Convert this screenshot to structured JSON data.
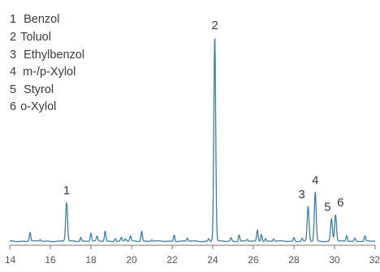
{
  "chart_data": {
    "type": "line",
    "title": "",
    "xlabel": "",
    "ylabel": "",
    "xlim": [
      14,
      32
    ],
    "ylim": [
      0,
      100
    ],
    "x_ticks": [
      14,
      16,
      18,
      20,
      22,
      24,
      26,
      28,
      30,
      32
    ],
    "grid": false,
    "legend_position": "top-left",
    "colors": {
      "trace": "#3d7fa6",
      "axis": "#777777",
      "text": "#3a3a3a"
    },
    "legend_entries": [
      {
        "number": "1",
        "name": "Benzol"
      },
      {
        "number": "2",
        "name": "Toluol"
      },
      {
        "number": "3",
        "name": "Ethylbenzol"
      },
      {
        "number": "4",
        "name": "m-/p-Xylol"
      },
      {
        "number": "5",
        "name": "Styrol"
      },
      {
        "number": "6",
        "name": "o-Xylol"
      }
    ],
    "peaks": [
      {
        "label": "1",
        "x": 16.8,
        "y": 19
      },
      {
        "label": "2",
        "x": 24.1,
        "y": 100
      },
      {
        "label": "3",
        "x": 28.7,
        "y": 17
      },
      {
        "label": "4",
        "x": 29.05,
        "y": 24
      },
      {
        "label": "5",
        "x": 29.85,
        "y": 11
      },
      {
        "label": "6",
        "x": 30.05,
        "y": 13
      }
    ],
    "minor_peaks": [
      {
        "x": 15.0,
        "y": 4.3
      },
      {
        "x": 15.5,
        "y": 0.8
      },
      {
        "x": 17.5,
        "y": 2.0
      },
      {
        "x": 18.0,
        "y": 4.0
      },
      {
        "x": 18.3,
        "y": 2.3
      },
      {
        "x": 18.7,
        "y": 5.0
      },
      {
        "x": 19.2,
        "y": 1.5
      },
      {
        "x": 19.5,
        "y": 1.8
      },
      {
        "x": 19.7,
        "y": 1.2
      },
      {
        "x": 19.95,
        "y": 2.5
      },
      {
        "x": 20.5,
        "y": 5.1
      },
      {
        "x": 21.0,
        "y": 0.8
      },
      {
        "x": 22.1,
        "y": 3.2
      },
      {
        "x": 22.75,
        "y": 1.5
      },
      {
        "x": 23.8,
        "y": 1.2
      },
      {
        "x": 24.9,
        "y": 1.8
      },
      {
        "x": 25.3,
        "y": 3.2
      },
      {
        "x": 25.7,
        "y": 0.8
      },
      {
        "x": 26.2,
        "y": 5.4
      },
      {
        "x": 26.4,
        "y": 3.5
      },
      {
        "x": 26.6,
        "y": 1.4
      },
      {
        "x": 27.0,
        "y": 1.2
      },
      {
        "x": 28.0,
        "y": 1.8
      },
      {
        "x": 28.4,
        "y": 1.5
      },
      {
        "x": 30.6,
        "y": 2.8
      },
      {
        "x": 31.0,
        "y": 1.5
      },
      {
        "x": 31.5,
        "y": 2.5
      }
    ]
  }
}
